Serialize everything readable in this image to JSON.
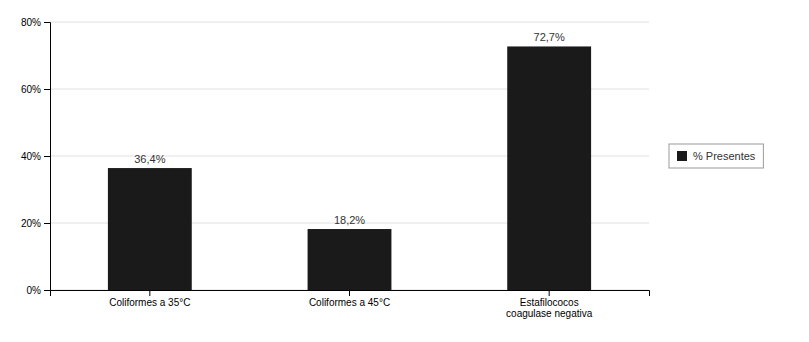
{
  "chart_data": {
    "type": "bar",
    "categories": [
      "Coliformes a 35°C",
      "Coliformes a 45°C",
      "Estafilococos\ncoagulase negativa"
    ],
    "series": [
      {
        "name": "% Presentes",
        "color": "#1a1a1a",
        "values": [
          36.4,
          18.2,
          72.7
        ],
        "value_labels": [
          "36,4%",
          "18,2%",
          "72,7%"
        ]
      }
    ],
    "ylim": [
      0,
      80
    ],
    "yticks": [
      {
        "value": 0,
        "label": "0%"
      },
      {
        "value": 20,
        "label": "20%"
      },
      {
        "value": 40,
        "label": "40%"
      },
      {
        "value": 60,
        "label": "60%"
      },
      {
        "value": 80,
        "label": "80%"
      }
    ],
    "grid": true,
    "data_labels": true,
    "legend": "right"
  }
}
